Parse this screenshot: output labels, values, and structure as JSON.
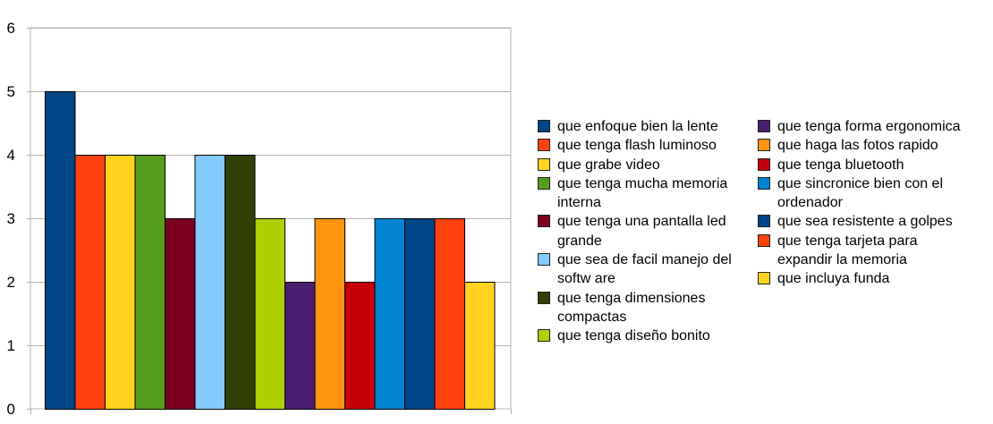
{
  "chart_data": {
    "type": "bar",
    "categories": [
      "que enfoque bien la lente",
      "que tenga flash luminoso",
      "que grabe video",
      "que tenga mucha memoria interna",
      "que tenga una pantalla led grande",
      "que sea de facil manejo del softw are",
      "que tenga dimensiones compactas",
      "que tenga diseño bonito",
      "que tenga forma ergonomica",
      "que haga las fotos rapido",
      "que tenga bluetooth",
      "que sincronice bien con el ordenador",
      "que sea resistente a golpes",
      "que tenga tarjeta para expandir la memoria",
      "que incluya funda"
    ],
    "values": [
      5,
      4,
      4,
      4,
      3,
      4,
      4,
      3,
      2,
      3,
      2,
      3,
      3,
      3,
      2
    ],
    "colors": [
      "#004586",
      "#ff420e",
      "#ffd320",
      "#579d1c",
      "#7e0021",
      "#83caff",
      "#314004",
      "#aecf00",
      "#4b1f6f",
      "#ff950e",
      "#c5000b",
      "#0084d1",
      "#004586",
      "#ff420e",
      "#ffd320"
    ],
    "ylim": [
      0,
      6
    ],
    "yticks": [
      "0",
      "1",
      "2",
      "3",
      "4",
      "5",
      "6"
    ],
    "grid": true,
    "legend_position": "right"
  }
}
